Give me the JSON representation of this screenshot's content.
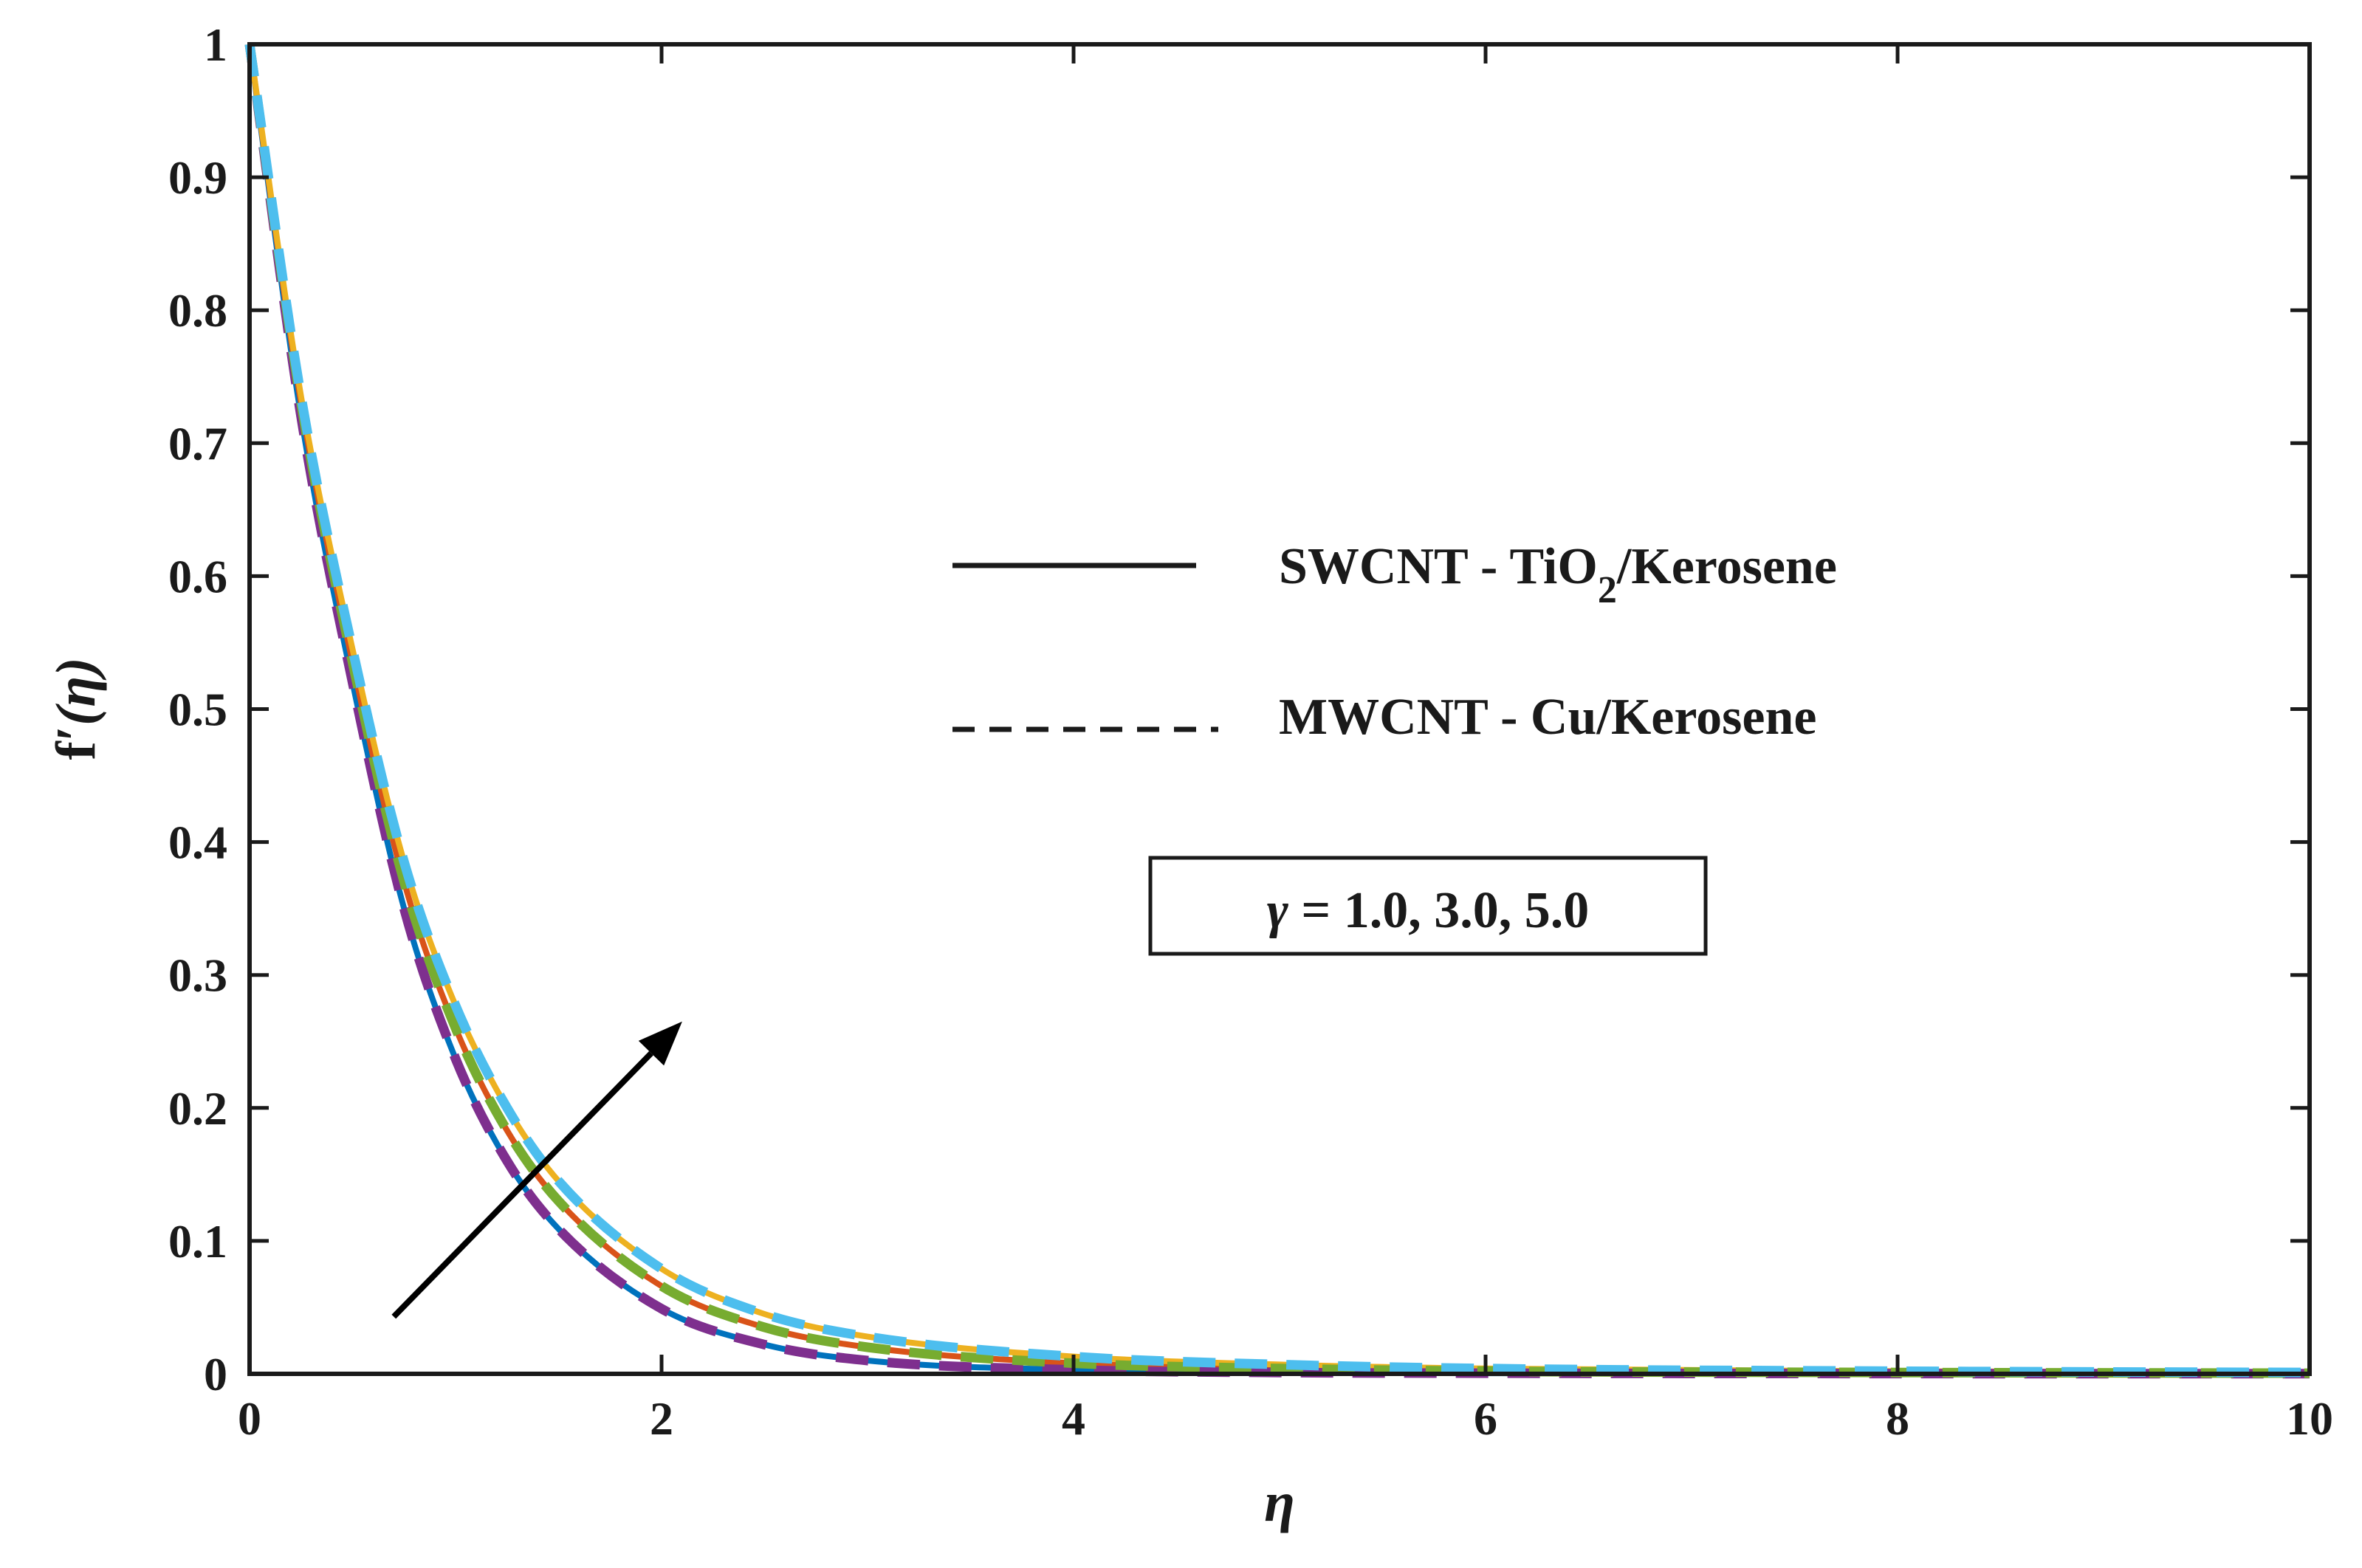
{
  "chart_data": {
    "type": "line",
    "title": "",
    "xlabel": "η",
    "ylabel_main": "f",
    "ylabel_prime": "′",
    "ylabel_arg": "(η)",
    "xlim": [
      0,
      10
    ],
    "ylim": [
      0,
      1
    ],
    "x_ticks": [
      0,
      2,
      4,
      6,
      8,
      10
    ],
    "y_ticks": [
      0,
      0.1,
      0.2,
      0.3,
      0.4,
      0.5,
      0.6,
      0.7,
      0.8,
      0.9,
      1
    ],
    "x_tick_labels": [
      "0",
      "2",
      "4",
      "6",
      "8",
      "10"
    ],
    "y_tick_labels": [
      "0",
      "0.1",
      "0.2",
      "0.3",
      "0.4",
      "0.5",
      "0.6",
      "0.7",
      "0.8",
      "0.9",
      "1"
    ],
    "grid": false,
    "legend": {
      "position": "center-right",
      "entries": [
        {
          "style": "solid",
          "label_main": "SWCNT - TiO",
          "label_sub": "2",
          "label_tail": "/Kerosene"
        },
        {
          "style": "dashed",
          "label_main": "MWCNT - Cu/Kerosene",
          "label_sub": "",
          "label_tail": ""
        }
      ]
    },
    "annotation_box": {
      "symbol": "γ",
      "text": " = 1.0, 3.0, 5.0"
    },
    "arrow": {
      "from": [
        0.7,
        0.043
      ],
      "to": [
        2.1,
        0.265
      ]
    },
    "series": [
      {
        "style": "solid",
        "color": "#0072BD",
        "x": [
          0,
          0.25,
          0.5,
          0.75,
          1,
          1.25,
          1.5,
          2,
          2.5,
          3,
          4,
          5,
          6,
          8,
          10
        ],
        "y": [
          1,
          0.72,
          0.52,
          0.35,
          0.237,
          0.16,
          0.109,
          0.049,
          0.022,
          0.01,
          0.003,
          0.001,
          0.0005,
          0.0002,
          0.0001
        ]
      },
      {
        "style": "solid",
        "color": "#D95319",
        "x": [
          0,
          0.25,
          0.5,
          0.75,
          1,
          1.25,
          1.5,
          2,
          2.5,
          3,
          4,
          5,
          6,
          8,
          10
        ],
        "y": [
          1,
          0.73,
          0.535,
          0.37,
          0.26,
          0.183,
          0.13,
          0.066,
          0.035,
          0.02,
          0.008,
          0.004,
          0.002,
          0.001,
          0.0005
        ]
      },
      {
        "style": "solid",
        "color": "#EDB120",
        "x": [
          0,
          0.25,
          0.5,
          0.75,
          1,
          1.25,
          1.5,
          2,
          2.5,
          3,
          4,
          5,
          6,
          8,
          10
        ],
        "y": [
          1,
          0.735,
          0.545,
          0.385,
          0.277,
          0.2,
          0.145,
          0.079,
          0.045,
          0.028,
          0.013,
          0.007,
          0.004,
          0.002,
          0.001
        ]
      },
      {
        "style": "dashed",
        "color": "#7E2F8E",
        "x": [
          0,
          0.25,
          0.5,
          0.75,
          1,
          1.25,
          1.5,
          2,
          2.5,
          3,
          4,
          5,
          6,
          8,
          10
        ],
        "y": [
          1,
          0.72,
          0.52,
          0.35,
          0.237,
          0.16,
          0.109,
          0.049,
          0.022,
          0.01,
          0.003,
          0.001,
          0.0005,
          0.0002,
          0.0001
        ]
      },
      {
        "style": "dashed",
        "color": "#77AC30",
        "x": [
          0,
          0.25,
          0.5,
          0.75,
          1,
          1.25,
          1.5,
          2,
          2.5,
          3,
          4,
          5,
          6,
          8,
          10
        ],
        "y": [
          1,
          0.73,
          0.535,
          0.37,
          0.26,
          0.183,
          0.13,
          0.066,
          0.035,
          0.02,
          0.008,
          0.004,
          0.002,
          0.001,
          0.0005
        ]
      },
      {
        "style": "dashed",
        "color": "#4DBEEE",
        "x": [
          0,
          0.25,
          0.5,
          0.75,
          1,
          1.25,
          1.5,
          2,
          2.5,
          3,
          4,
          5,
          6,
          8,
          10
        ],
        "y": [
          1,
          0.735,
          0.545,
          0.385,
          0.277,
          0.2,
          0.145,
          0.079,
          0.045,
          0.028,
          0.013,
          0.007,
          0.004,
          0.002,
          0.001
        ]
      }
    ]
  }
}
